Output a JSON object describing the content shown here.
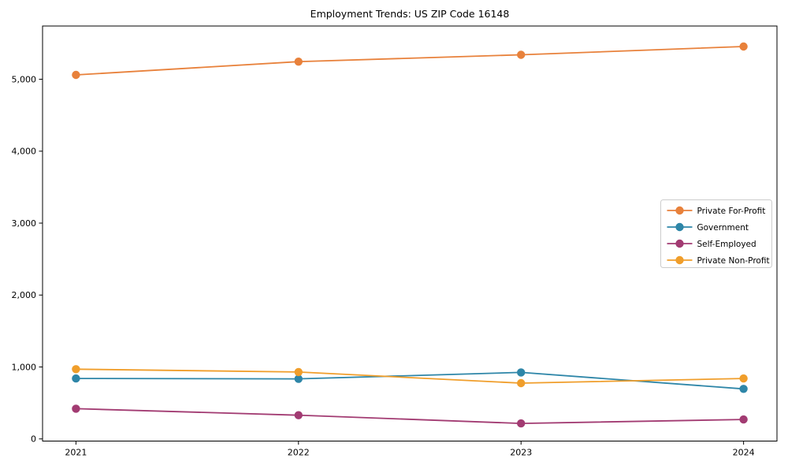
{
  "chart_data": {
    "type": "line",
    "title": "Employment Trends: US ZIP Code 16148",
    "xlabel": "",
    "ylabel": "",
    "x": [
      2021,
      2022,
      2023,
      2024
    ],
    "x_labels": [
      "2021",
      "2022",
      "2023",
      "2024"
    ],
    "series": [
      {
        "name": "Private For-Profit",
        "color": "#E8813B",
        "values": [
          5060,
          5245,
          5340,
          5455
        ]
      },
      {
        "name": "Government",
        "color": "#2E86A8",
        "values": [
          840,
          835,
          925,
          695
        ]
      },
      {
        "name": "Self-Employed",
        "color": "#A23B72",
        "values": [
          420,
          330,
          215,
          270
        ]
      },
      {
        "name": "Private Non-Profit",
        "color": "#F09E2B",
        "values": [
          970,
          930,
          775,
          840
        ]
      }
    ],
    "yticks": [
      0,
      1000,
      2000,
      3000,
      4000,
      5000
    ],
    "ytick_labels": [
      "0",
      "1,000",
      "2,000",
      "3,000",
      "4,000",
      "5,000"
    ],
    "xlim": [
      2020.85,
      2024.15
    ],
    "ylim": [
      -30,
      5740
    ],
    "grid": false,
    "legend": {
      "position": "center-right",
      "entries": [
        "Private For-Profit",
        "Government",
        "Self-Employed",
        "Private Non-Profit"
      ]
    },
    "marker": "circle",
    "axis_color": "#000000",
    "text_color": "#000000",
    "legend_border_color": "#cccccc",
    "background_color": "#ffffff"
  }
}
